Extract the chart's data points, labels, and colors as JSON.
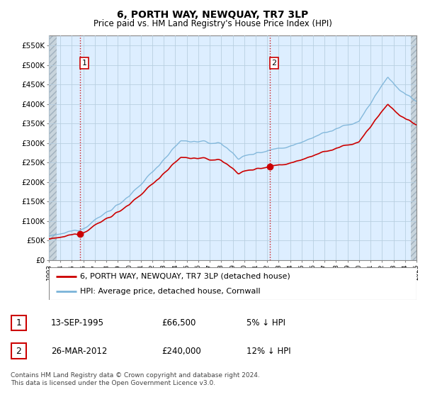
{
  "title": "6, PORTH WAY, NEWQUAY, TR7 3LP",
  "subtitle": "Price paid vs. HM Land Registry's House Price Index (HPI)",
  "ylabel_ticks": [
    "£0",
    "£50K",
    "£100K",
    "£150K",
    "£200K",
    "£250K",
    "£300K",
    "£350K",
    "£400K",
    "£450K",
    "£500K",
    "£550K"
  ],
  "ytick_values": [
    0,
    50000,
    100000,
    150000,
    200000,
    250000,
    300000,
    350000,
    400000,
    450000,
    500000,
    550000
  ],
  "ylim": [
    0,
    575000
  ],
  "xmin_year": 1993,
  "xmax_year": 2025,
  "xtick_years": [
    1993,
    1994,
    1995,
    1996,
    1997,
    1998,
    1999,
    2000,
    2001,
    2002,
    2003,
    2004,
    2005,
    2006,
    2007,
    2008,
    2009,
    2010,
    2011,
    2012,
    2013,
    2014,
    2015,
    2016,
    2017,
    2018,
    2019,
    2020,
    2021,
    2022,
    2023,
    2024,
    2025
  ],
  "sale1_year": 1995.708,
  "sale1_price": 66500,
  "sale1_label": "1",
  "sale2_year": 2012.233,
  "sale2_price": 240000,
  "sale2_label": "2",
  "hpi_color": "#7ab3d8",
  "price_color": "#cc0000",
  "dashed_line_color": "#cc0000",
  "marker_color": "#cc0000",
  "chart_bg_color": "#ddeeff",
  "hatch_color": "#c0c8d0",
  "grid_color": "#b8cfe0",
  "legend_label1": "6, PORTH WAY, NEWQUAY, TR7 3LP (detached house)",
  "legend_label2": "HPI: Average price, detached house, Cornwall",
  "info1_label": "1",
  "info1_date": "13-SEP-1995",
  "info1_price": "£66,500",
  "info1_hpi": "5% ↓ HPI",
  "info2_label": "2",
  "info2_date": "26-MAR-2012",
  "info2_price": "£240,000",
  "info2_hpi": "12% ↓ HPI",
  "footer": "Contains HM Land Registry data © Crown copyright and database right 2024.\nThis data is licensed under the Open Government Licence v3.0."
}
